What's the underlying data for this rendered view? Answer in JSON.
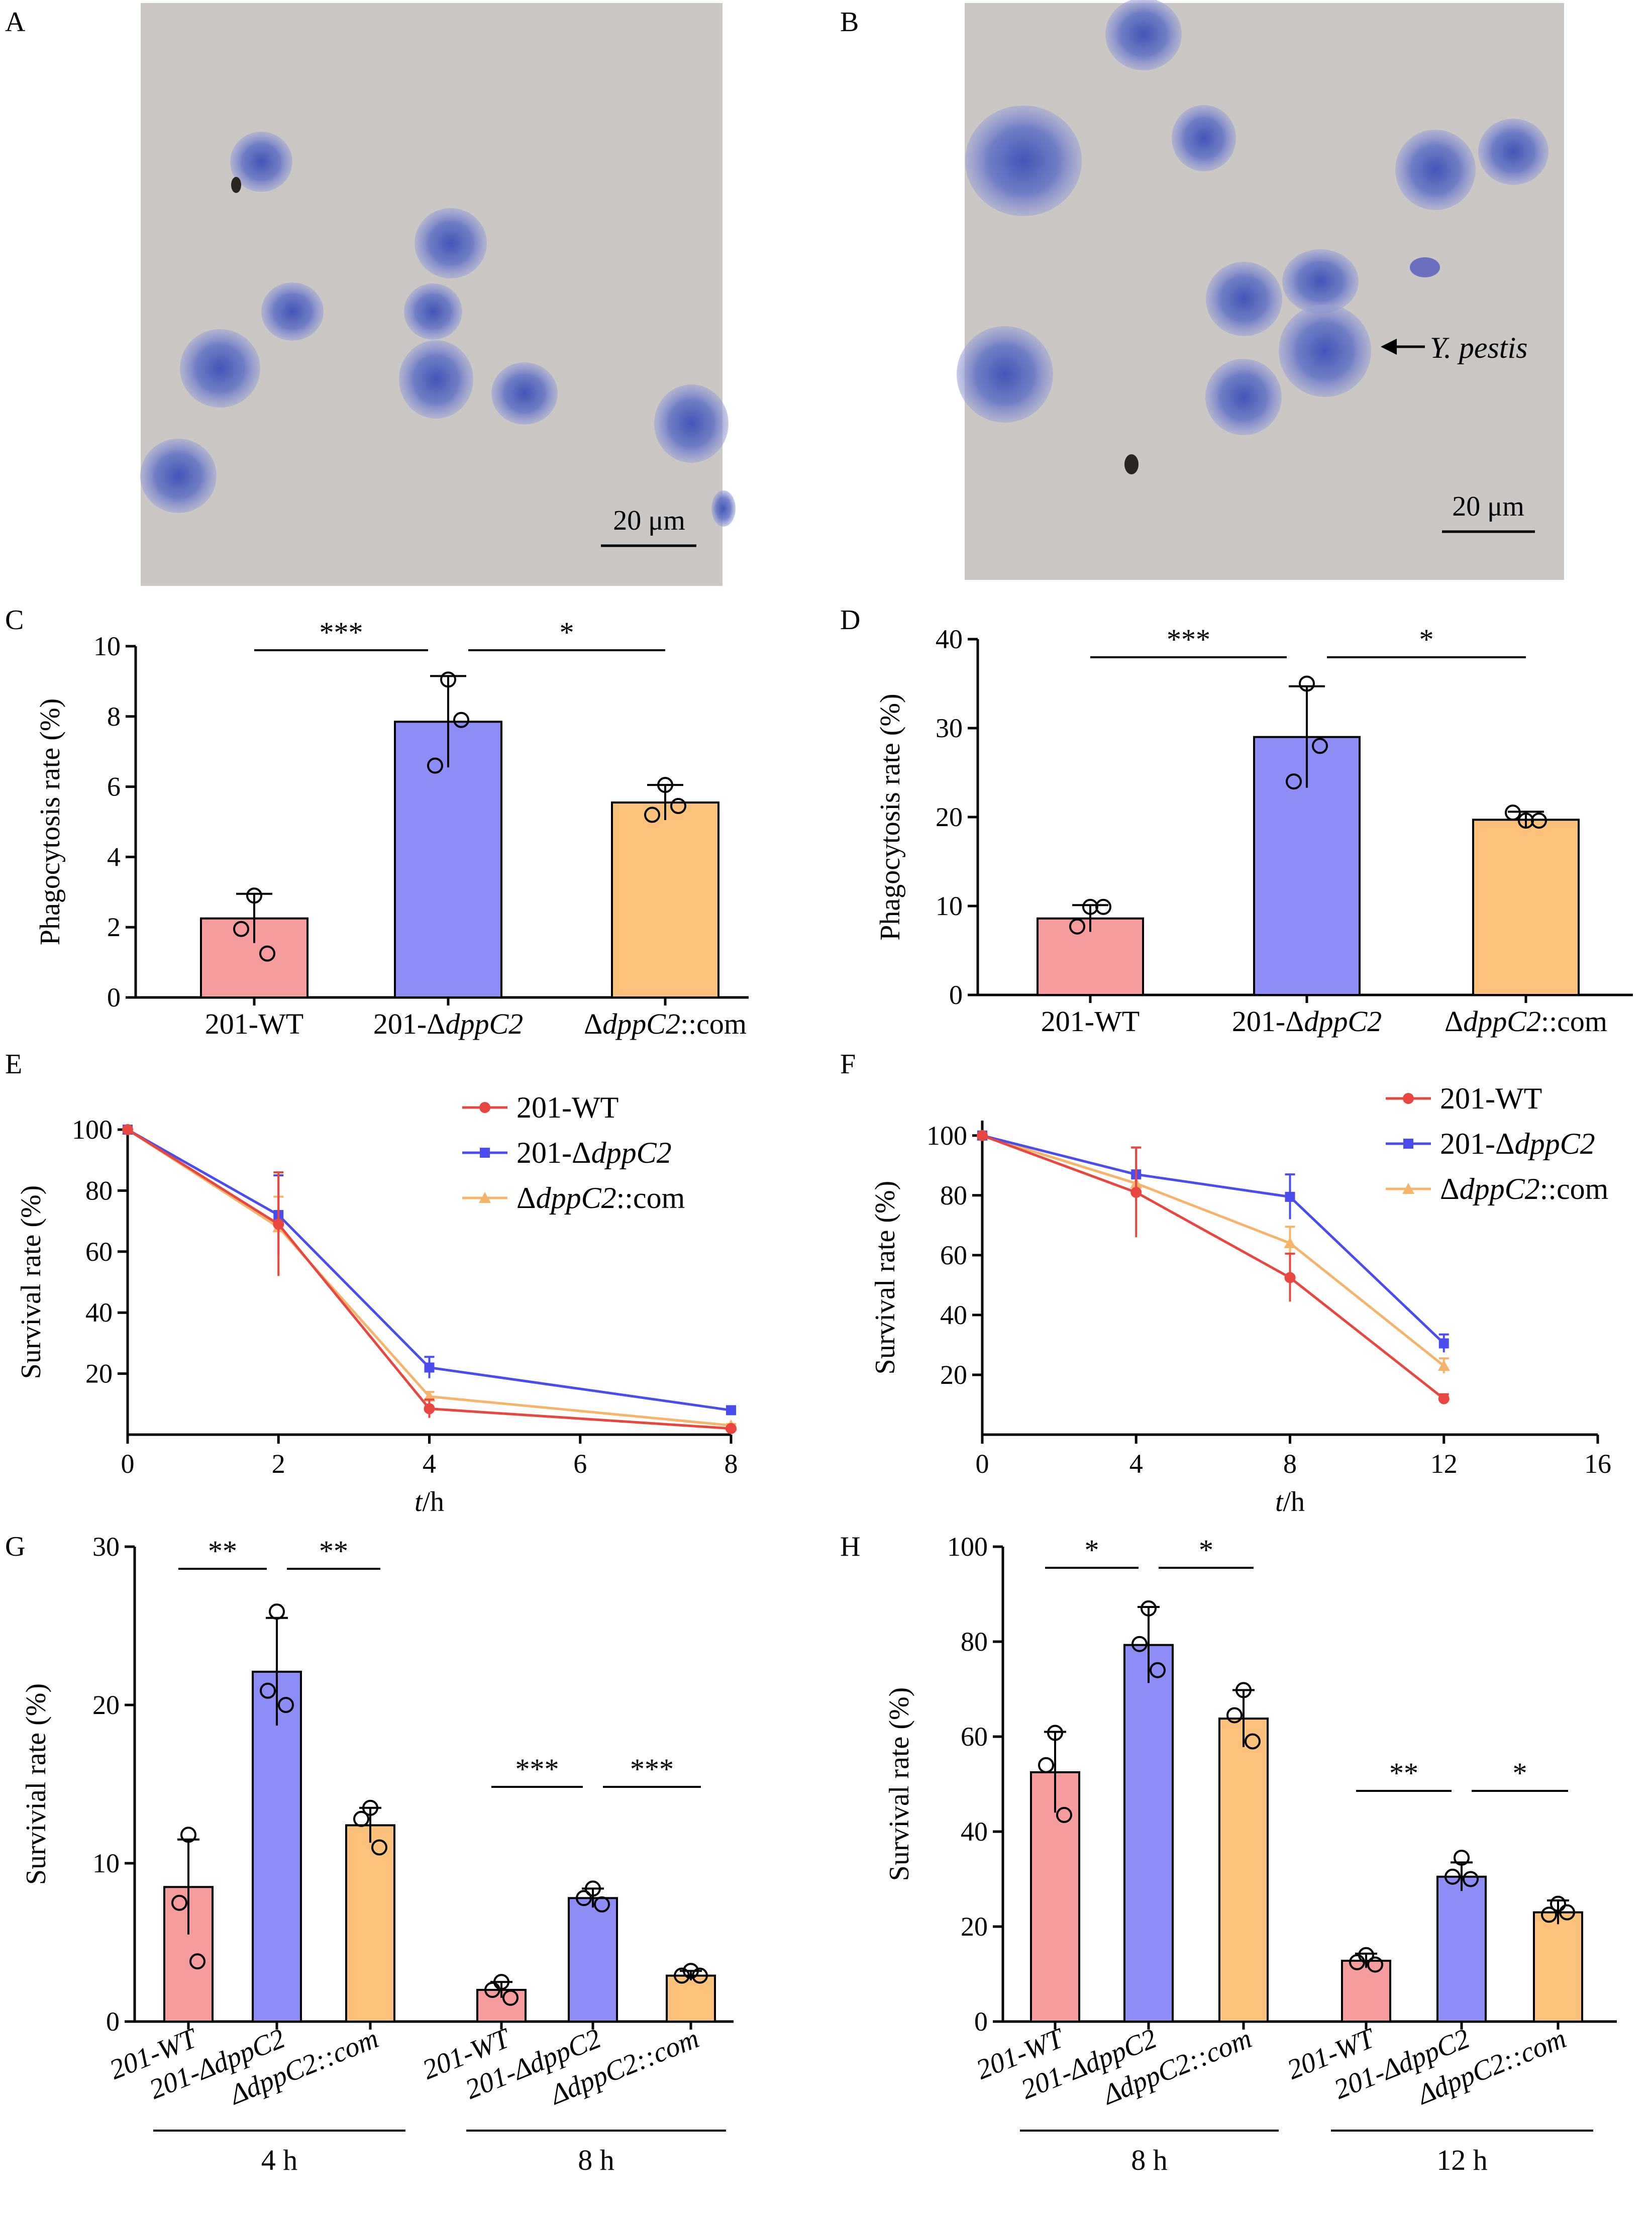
{
  "panels": {
    "A": {
      "letter": "A",
      "scalebar": "20 μm"
    },
    "B": {
      "letter": "B",
      "scalebar": "20 μm",
      "annotation": "Y. pestis"
    }
  },
  "colors": {
    "wt": "#f79c9c",
    "wt_line": "#e8463f",
    "mut": "#8e8cf6",
    "mut_line": "#4a4cf0",
    "com": "#fcc17b",
    "com_line": "#f7b469",
    "cell": "#4f63c0",
    "background": "#c9c6c3"
  },
  "chart_data": [
    {
      "panel": "C",
      "type": "bar",
      "ylabel": "Phagocytosis rate (%)",
      "categories": [
        "201-WT",
        "201-ΔdppC2",
        "ΔdppC2::com"
      ],
      "values": [
        2.25,
        7.85,
        5.55
      ],
      "errors": [
        0.7,
        1.3,
        0.5
      ],
      "points": [
        [
          2.9,
          1.95,
          1.25
        ],
        [
          9.05,
          6.6,
          7.9
        ],
        [
          6.05,
          5.2,
          5.45
        ]
      ],
      "ylim": [
        0,
        10
      ],
      "yticks": [
        0,
        2,
        4,
        6,
        8,
        10
      ],
      "sig": [
        {
          "from": 0,
          "to": 1,
          "label": "***"
        },
        {
          "from": 1,
          "to": 2,
          "label": "*"
        }
      ]
    },
    {
      "panel": "D",
      "type": "bar",
      "ylabel": "Phagocytosis rate (%)",
      "categories": [
        "201-WT",
        "201-ΔdppC2",
        "ΔdppC2::com"
      ],
      "values": [
        8.6,
        29.0,
        19.7
      ],
      "errors": [
        1.5,
        5.7,
        0.9
      ],
      "points": [
        [
          9.9,
          7.7,
          9.9
        ],
        [
          35.0,
          24.0,
          28.0
        ],
        [
          19.6,
          20.5,
          19.6
        ]
      ],
      "ylim": [
        0,
        40
      ],
      "yticks": [
        0,
        10,
        20,
        30,
        40
      ],
      "sig": [
        {
          "from": 0,
          "to": 1,
          "label": "***"
        },
        {
          "from": 1,
          "to": 2,
          "label": "*"
        }
      ]
    },
    {
      "panel": "E",
      "type": "line",
      "xlabel": "t/h",
      "ylabel": "Survival rate (%)",
      "x": [
        0,
        2,
        4,
        8
      ],
      "xlim": [
        0,
        8
      ],
      "xticks": [
        0,
        2,
        4,
        6,
        8
      ],
      "ylim": [
        0,
        100
      ],
      "yticks": [
        20,
        40,
        60,
        80,
        100
      ],
      "series": [
        {
          "name": "201-WT",
          "values": [
            100,
            69,
            8.5,
            2
          ],
          "errors": [
            0,
            17,
            3,
            0.5
          ]
        },
        {
          "name": "201-ΔdppC2",
          "values": [
            100,
            72,
            22,
            8
          ],
          "errors": [
            0,
            13,
            3.5,
            0.7
          ]
        },
        {
          "name": "ΔdppC2::com",
          "values": [
            100,
            68,
            12.5,
            3
          ],
          "errors": [
            0,
            10,
            1.5,
            0.5
          ]
        }
      ],
      "legend": "top-right"
    },
    {
      "panel": "F",
      "type": "line",
      "xlabel": "t/h",
      "ylabel": "Survival rate (%)",
      "x": [
        0,
        4,
        8,
        12
      ],
      "xlim": [
        0,
        16
      ],
      "xticks": [
        0,
        4,
        8,
        12,
        16
      ],
      "ylim": [
        0,
        105
      ],
      "yticks": [
        20,
        40,
        60,
        80,
        100
      ],
      "series": [
        {
          "name": "201-WT",
          "values": [
            100,
            81,
            52.5,
            12
          ],
          "errors": [
            0,
            15,
            8,
            1.5
          ]
        },
        {
          "name": "201-ΔdppC2",
          "values": [
            100,
            87,
            79.5,
            30.5
          ],
          "errors": [
            0,
            9,
            7.5,
            3
          ]
        },
        {
          "name": "ΔdppC2::com",
          "values": [
            100,
            84,
            64,
            23
          ],
          "errors": [
            0,
            2,
            5.5,
            2.5
          ]
        }
      ],
      "legend": "top-right"
    },
    {
      "panel": "G",
      "type": "bar",
      "ylabel": "Survivial rate (%)",
      "groups": [
        "4 h",
        "8 h"
      ],
      "categories": [
        "201-WT",
        "201-ΔdppC2",
        "ΔdppC2::com"
      ],
      "values": [
        [
          8.5,
          22.1,
          12.4
        ],
        [
          2.0,
          7.8,
          2.9
        ]
      ],
      "errors": [
        [
          3.0,
          3.4,
          1.1
        ],
        [
          0.5,
          0.6,
          0.3
        ]
      ],
      "points": [
        [
          [
            11.8,
            7.5,
            3.8
          ],
          [
            25.9,
            20.9,
            20.0
          ],
          [
            13.5,
            12.8,
            11.0
          ]
        ],
        [
          [
            2.5,
            2.0,
            1.5
          ],
          [
            8.4,
            7.8,
            7.4
          ],
          [
            3.2,
            2.9,
            2.9
          ]
        ]
      ],
      "ylim": [
        0,
        30
      ],
      "yticks": [
        0,
        10,
        20,
        30
      ],
      "sig": [
        {
          "group": 0,
          "from": 0,
          "to": 1,
          "label": "**"
        },
        {
          "group": 0,
          "from": 1,
          "to": 2,
          "label": "**"
        },
        {
          "group": 1,
          "from": 0,
          "to": 1,
          "label": "***"
        },
        {
          "group": 1,
          "from": 1,
          "to": 2,
          "label": "***"
        }
      ]
    },
    {
      "panel": "H",
      "type": "bar",
      "ylabel": "Survival rate (%)",
      "groups": [
        "8 h",
        "12 h"
      ],
      "categories": [
        "201-WT",
        "201-ΔdppC2",
        "ΔdppC2::com"
      ],
      "values": [
        [
          52.5,
          79.3,
          63.8
        ],
        [
          12.8,
          30.5,
          23.0
        ]
      ],
      "errors": [
        [
          8.5,
          8.0,
          6.0
        ],
        [
          1.5,
          3.0,
          2.5
        ]
      ],
      "points": [
        [
          [
            60.8,
            54.0,
            43.5
          ],
          [
            87.0,
            79.5,
            74.0
          ],
          [
            69.8,
            64.5,
            59.0
          ]
        ],
        [
          [
            14.0,
            12.5,
            12.0
          ],
          [
            34.5,
            30.5,
            30.0
          ],
          [
            24.8,
            22.5,
            23.0
          ]
        ]
      ],
      "ylim": [
        0,
        100
      ],
      "yticks": [
        0,
        20,
        40,
        60,
        80,
        100
      ],
      "sig": [
        {
          "group": 0,
          "from": 0,
          "to": 1,
          "label": "*"
        },
        {
          "group": 0,
          "from": 1,
          "to": 2,
          "label": "*"
        },
        {
          "group": 1,
          "from": 0,
          "to": 1,
          "label": "**"
        },
        {
          "group": 1,
          "from": 1,
          "to": 2,
          "label": "*"
        }
      ]
    }
  ]
}
